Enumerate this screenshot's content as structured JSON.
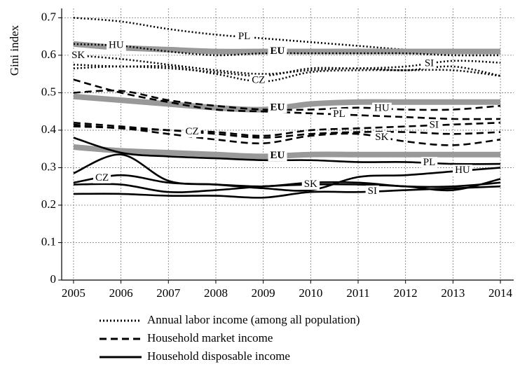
{
  "chart_data": {
    "type": "line",
    "y_label": "Gini index",
    "x": [
      2005,
      2006,
      2007,
      2008,
      2009,
      2010,
      2011,
      2012,
      2013,
      2014
    ],
    "xlim": [
      2004.75,
      2014.28
    ],
    "xticks": [
      2005,
      2006,
      2007,
      2008,
      2009,
      2010,
      2011,
      2012,
      2013,
      2014
    ],
    "ylim": [
      0,
      0.725
    ],
    "yticks": [
      0,
      0.1,
      0.2,
      0.3,
      0.4,
      0.5,
      0.6,
      0.7
    ],
    "grid": true,
    "legend": [
      {
        "label": "Annual labor income (among all population)",
        "style": "dotted"
      },
      {
        "label": "Household market income",
        "style": "dashed"
      },
      {
        "label": "Household disposable income",
        "style": "solid"
      }
    ],
    "series": [
      {
        "label": "PL",
        "style": "dotted",
        "color": "#000000",
        "values": [
          0.7,
          0.69,
          0.67,
          0.655,
          0.645,
          0.635,
          0.625,
          0.615,
          0.61,
          0.605
        ]
      },
      {
        "label": "EU",
        "style": "dotted",
        "color": "#999999",
        "values": [
          0.63,
          0.62,
          0.615,
          0.61,
          0.61,
          0.61,
          0.61,
          0.61,
          0.61,
          0.61
        ]
      },
      {
        "label": "HU",
        "style": "dotted",
        "color": "#000000",
        "values": [
          0.63,
          0.625,
          0.61,
          0.6,
          0.605,
          0.605,
          0.605,
          0.605,
          0.6,
          0.6
        ]
      },
      {
        "label": "SK",
        "style": "dotted",
        "color": "#000000",
        "values": [
          0.6,
          0.59,
          0.575,
          0.56,
          0.55,
          0.56,
          0.565,
          0.56,
          0.57,
          0.545
        ]
      },
      {
        "label": "CZ",
        "style": "dotted",
        "color": "#000000",
        "values": [
          0.575,
          0.57,
          0.57,
          0.55,
          0.53,
          0.555,
          0.56,
          0.56,
          0.56,
          0.545
        ]
      },
      {
        "label": "SI",
        "style": "dotted",
        "color": "#000000",
        "values": [
          0.565,
          0.57,
          0.565,
          0.555,
          0.545,
          0.565,
          0.565,
          0.57,
          0.585,
          0.58
        ]
      },
      {
        "label": "EU",
        "style": "dashed",
        "color": "#999999",
        "values": [
          0.49,
          0.48,
          0.47,
          0.46,
          0.455,
          0.47,
          0.475,
          0.475,
          0.475,
          0.475
        ]
      },
      {
        "label": "HU",
        "style": "dashed",
        "color": "#000000",
        "values": [
          0.5,
          0.505,
          0.48,
          0.465,
          0.455,
          0.455,
          0.46,
          0.455,
          0.455,
          0.465
        ]
      },
      {
        "label": "PL",
        "style": "dashed",
        "color": "#000000",
        "values": [
          0.535,
          0.5,
          0.475,
          0.455,
          0.45,
          0.445,
          0.44,
          0.435,
          0.43,
          0.43
        ]
      },
      {
        "label": "SI",
        "style": "dashed",
        "color": "#000000",
        "values": [
          0.42,
          0.41,
          0.4,
          0.395,
          0.385,
          0.4,
          0.405,
          0.41,
          0.415,
          0.42
        ]
      },
      {
        "label": "CZ",
        "style": "dashed",
        "color": "#000000",
        "values": [
          0.415,
          0.405,
          0.4,
          0.39,
          0.38,
          0.39,
          0.395,
          0.395,
          0.39,
          0.395
        ]
      },
      {
        "label": "SK",
        "style": "dashed",
        "color": "#000000",
        "values": [
          0.41,
          0.405,
          0.39,
          0.375,
          0.365,
          0.385,
          0.39,
          0.37,
          0.36,
          0.375
        ]
      },
      {
        "label": "EU",
        "style": "solid",
        "color": "#999999",
        "values": [
          0.355,
          0.345,
          0.34,
          0.335,
          0.33,
          0.335,
          0.335,
          0.335,
          0.335,
          0.335
        ]
      },
      {
        "label": "PL",
        "style": "solid",
        "color": "#000000",
        "values": [
          0.38,
          0.34,
          0.33,
          0.325,
          0.32,
          0.32,
          0.315,
          0.315,
          0.31,
          0.31
        ]
      },
      {
        "label": "HU",
        "style": "solid",
        "color": "#000000",
        "values": [
          0.285,
          0.335,
          0.265,
          0.255,
          0.245,
          0.24,
          0.275,
          0.28,
          0.29,
          0.3
        ]
      },
      {
        "label": "CZ",
        "style": "solid",
        "color": "#000000",
        "values": [
          0.26,
          0.28,
          0.26,
          0.255,
          0.25,
          0.26,
          0.26,
          0.25,
          0.25,
          0.26
        ]
      },
      {
        "label": "SK",
        "style": "solid",
        "color": "#000000",
        "values": [
          0.255,
          0.255,
          0.235,
          0.24,
          0.25,
          0.255,
          0.255,
          0.25,
          0.24,
          0.27
        ]
      },
      {
        "label": "SI",
        "style": "solid",
        "color": "#000000",
        "values": [
          0.23,
          0.23,
          0.225,
          0.225,
          0.22,
          0.235,
          0.235,
          0.24,
          0.245,
          0.25
        ]
      }
    ]
  }
}
